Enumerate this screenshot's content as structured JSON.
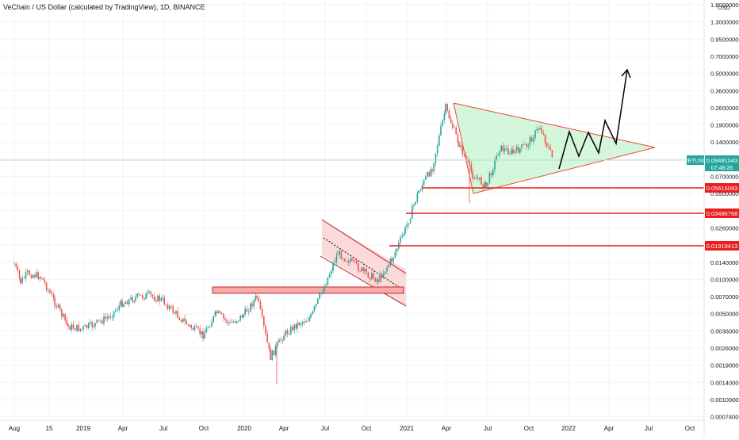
{
  "header": {
    "title": "VeChain / US Dollar (calculated by TradingView), 1D, BINANCE"
  },
  "chart_data": {
    "type": "candlestick",
    "title": "VeChain / US Dollar (calculated by TradingView), 1D, BINANCE",
    "symbol": "VETUSD",
    "last_price": "0.09481043",
    "countdown": "07:48:26",
    "y_scale": "log",
    "currency_label": "USD",
    "y_ticks": [
      "1.80000000",
      "1.30000000",
      "0.95000000",
      "0.70000000",
      "0.50000000",
      "0.36000000",
      "0.26000000",
      "0.19000000",
      "0.14000000",
      "0.10000000",
      "0.07000000",
      "0.05000000",
      "0.03600000",
      "0.02600000",
      "0.01900000",
      "0.01400000",
      "0.01000000",
      "0.00700000",
      "0.00500000",
      "0.00360000",
      "0.00260000",
      "0.00190000",
      "0.00140000",
      "0.00100000",
      "0.00074000"
    ],
    "x_ticks": [
      "Aug",
      "15",
      "2019",
      "Apr",
      "Jul",
      "Oct",
      "2020",
      "Apr",
      "Jul",
      "Oct",
      "2021",
      "Apr",
      "Jul",
      "Oct",
      "2022",
      "Apr",
      "Jul",
      "Oct"
    ],
    "levels": [
      "0.05615093",
      "0.03486768",
      "0.01919413"
    ],
    "colors": {
      "up": "#26a69a",
      "down": "#ef5350",
      "level": "#e91e1e",
      "triangle_fill": "#ccf5d5",
      "channel_fill": "#fbdada",
      "last_line": "#b2dfdb",
      "last_tag": "#26a69a"
    },
    "series": [
      {
        "x": "2018-08",
        "y": 0.0134
      },
      {
        "x": "2018-08-15",
        "y": 0.0095
      },
      {
        "x": "2018-09",
        "y": 0.0112
      },
      {
        "x": "2018-10",
        "y": 0.0105
      },
      {
        "x": "2018-11",
        "y": 0.0065
      },
      {
        "x": "2018-12",
        "y": 0.0041
      },
      {
        "x": "2019-01",
        "y": 0.0039
      },
      {
        "x": "2019-02",
        "y": 0.0043
      },
      {
        "x": "2019-03",
        "y": 0.0049
      },
      {
        "x": "2019-04",
        "y": 0.0064
      },
      {
        "x": "2019-05",
        "y": 0.0071
      },
      {
        "x": "2019-06",
        "y": 0.0074
      },
      {
        "x": "2019-07",
        "y": 0.0067
      },
      {
        "x": "2019-08",
        "y": 0.0052
      },
      {
        "x": "2019-09",
        "y": 0.0041
      },
      {
        "x": "2019-10",
        "y": 0.0035
      },
      {
        "x": "2019-11",
        "y": 0.0053
      },
      {
        "x": "2019-12",
        "y": 0.0043
      },
      {
        "x": "2020-01",
        "y": 0.0051
      },
      {
        "x": "2020-02",
        "y": 0.0072
      },
      {
        "x": "2020-03",
        "y": 0.0023
      },
      {
        "x": "2020-04",
        "y": 0.0035
      },
      {
        "x": "2020-05",
        "y": 0.0043
      },
      {
        "x": "2020-06",
        "y": 0.0049
      },
      {
        "x": "2020-07",
        "y": 0.0088
      },
      {
        "x": "2020-08",
        "y": 0.0165
      },
      {
        "x": "2020-09",
        "y": 0.0139
      },
      {
        "x": "2020-10",
        "y": 0.0113
      },
      {
        "x": "2020-11",
        "y": 0.0099
      },
      {
        "x": "2020-12",
        "y": 0.0145
      },
      {
        "x": "2021-01",
        "y": 0.0255
      },
      {
        "x": "2021-02",
        "y": 0.053
      },
      {
        "x": "2021-03",
        "y": 0.083
      },
      {
        "x": "2021-04",
        "y": 0.256
      },
      {
        "x": "2021-05",
        "y": 0.129
      },
      {
        "x": "2021-06",
        "y": 0.072
      },
      {
        "x": "2021-07",
        "y": 0.058
      },
      {
        "x": "2021-08",
        "y": 0.12
      },
      {
        "x": "2021-09",
        "y": 0.11
      },
      {
        "x": "2021-10",
        "y": 0.127
      },
      {
        "x": "2021-11",
        "y": 0.179
      },
      {
        "x": "2021-12",
        "y": 0.0948
      }
    ],
    "projection": [
      {
        "x": "2021-12-15",
        "y": 0.0948
      },
      {
        "x": "2022-01",
        "y": 0.165
      },
      {
        "x": "2022-02",
        "y": 0.105
      },
      {
        "x": "2022-03",
        "y": 0.156
      },
      {
        "x": "2022-03-20",
        "y": 0.111
      },
      {
        "x": "2022-04-15",
        "y": 0.187
      },
      {
        "x": "2022-05",
        "y": 0.109
      },
      {
        "x": "2022-06",
        "y": 0.53
      }
    ]
  }
}
